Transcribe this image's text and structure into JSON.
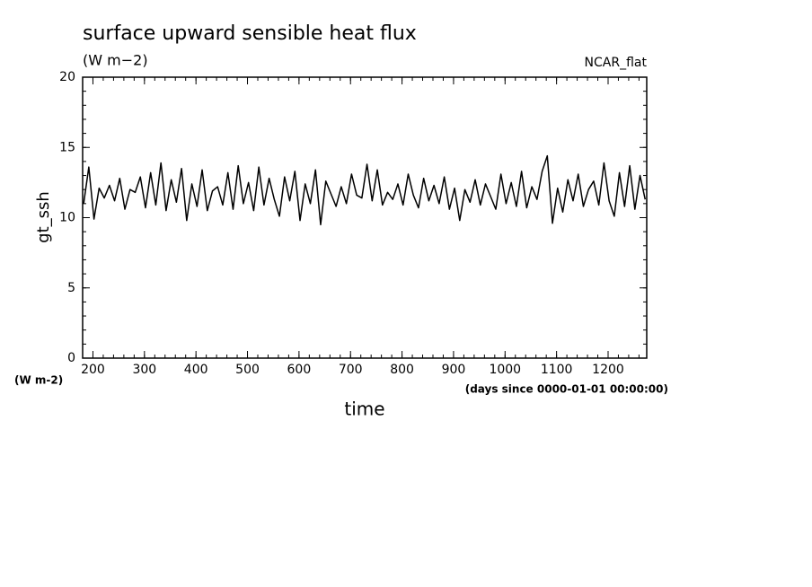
{
  "chart_data": {
    "type": "line",
    "title": "surface upward sensible heat flux",
    "subtitle": "(W m−2)",
    "annotation": "NCAR_flat",
    "ylabel": "gt_ssh",
    "yunit": "(W m-2)",
    "xlabel": "time",
    "xunit": "(days since 0000-01-01 00:00:00)",
    "xlim": [
      180,
      1275
    ],
    "ylim": [
      0,
      20
    ],
    "xticks": [
      200,
      300,
      400,
      500,
      600,
      700,
      800,
      900,
      1000,
      1100,
      1200
    ],
    "yticks": [
      0,
      5,
      10,
      15,
      20
    ],
    "xminorticks": [
      180,
      200,
      220,
      240,
      260,
      280,
      300,
      320,
      340,
      360,
      380,
      400,
      420,
      440,
      460,
      480,
      500,
      520,
      540,
      560,
      580,
      600,
      620,
      640,
      660,
      680,
      700,
      720,
      740,
      760,
      780,
      800,
      820,
      840,
      860,
      880,
      900,
      920,
      940,
      960,
      980,
      1000,
      1020,
      1040,
      1060,
      1080,
      1100,
      1120,
      1140,
      1160,
      1180,
      1200,
      1220,
      1240,
      1260
    ],
    "yminorticks": [
      0,
      1,
      2,
      3,
      4,
      5,
      6,
      7,
      8,
      9,
      10,
      11,
      12,
      13,
      14,
      15,
      16,
      17,
      18,
      19,
      20
    ],
    "series": [
      {
        "name": "gt_ssh",
        "color": "#000000",
        "x": [
          182,
          192,
          202,
          212,
          222,
          232,
          242,
          252,
          262,
          272,
          282,
          292,
          302,
          312,
          322,
          332,
          342,
          352,
          362,
          372,
          382,
          392,
          402,
          412,
          422,
          432,
          442,
          452,
          462,
          472,
          482,
          492,
          502,
          512,
          522,
          532,
          542,
          552,
          562,
          572,
          582,
          592,
          602,
          612,
          622,
          632,
          642,
          652,
          662,
          672,
          682,
          692,
          702,
          712,
          722,
          732,
          742,
          752,
          762,
          772,
          782,
          792,
          802,
          812,
          822,
          832,
          842,
          852,
          862,
          872,
          882,
          892,
          902,
          912,
          922,
          932,
          942,
          952,
          962,
          972,
          982,
          992,
          1002,
          1012,
          1022,
          1032,
          1042,
          1052,
          1062,
          1072,
          1082,
          1092,
          1102,
          1112,
          1122,
          1132,
          1142,
          1152,
          1162,
          1172,
          1182,
          1192,
          1202,
          1212,
          1222,
          1232,
          1242,
          1252,
          1262,
          1272
        ],
        "values": [
          11.0,
          13.6,
          9.9,
          12.1,
          11.4,
          12.3,
          11.2,
          12.8,
          10.6,
          12.0,
          11.8,
          12.9,
          10.7,
          13.2,
          10.9,
          13.9,
          10.5,
          12.7,
          11.1,
          13.5,
          9.8,
          12.4,
          10.8,
          13.4,
          10.5,
          11.9,
          12.2,
          10.9,
          13.2,
          10.6,
          13.7,
          11.0,
          12.5,
          10.5,
          13.6,
          10.9,
          12.8,
          11.3,
          10.1,
          12.9,
          11.2,
          13.3,
          9.8,
          12.4,
          11.0,
          13.4,
          9.5,
          12.6,
          11.7,
          10.8,
          12.2,
          11.0,
          13.1,
          11.6,
          11.4,
          13.8,
          11.2,
          13.4,
          10.9,
          11.8,
          11.3,
          12.4,
          10.9,
          13.1,
          11.6,
          10.7,
          12.8,
          11.2,
          12.3,
          11.0,
          12.9,
          10.6,
          12.1,
          9.8,
          12.0,
          11.1,
          12.7,
          10.9,
          12.4,
          11.5,
          10.6,
          13.1,
          11.0,
          12.5,
          10.8,
          13.3,
          10.7,
          12.2,
          11.3,
          13.3,
          14.4,
          9.6,
          12.1,
          10.4,
          12.7,
          11.2,
          13.1,
          10.8,
          12.0,
          12.6,
          10.9,
          13.9,
          11.2,
          10.1,
          13.2,
          10.8,
          13.7,
          10.6,
          13.0,
          11.3
        ]
      }
    ]
  }
}
